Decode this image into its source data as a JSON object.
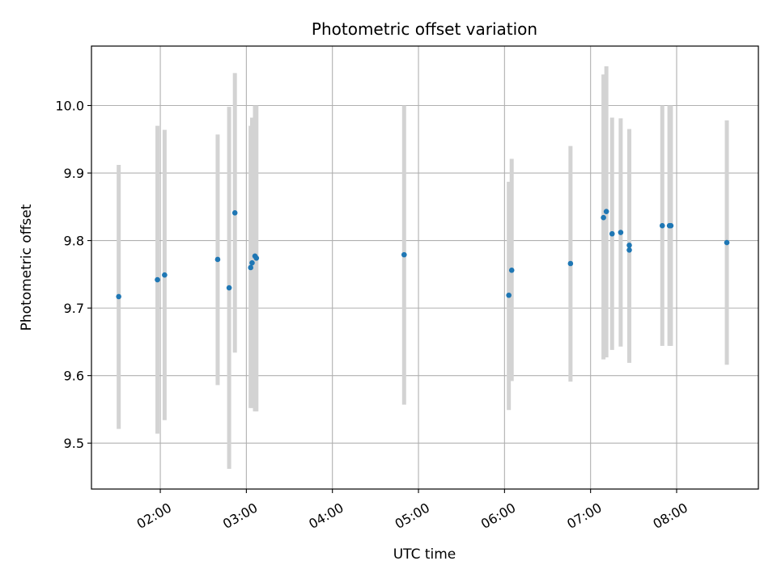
{
  "chart_data": {
    "type": "scatter",
    "title": "Photometric offset variation",
    "xlabel": "UTC time",
    "ylabel": "Photometric offset",
    "x_ticks": [
      "02:00",
      "03:00",
      "04:00",
      "05:00",
      "06:00",
      "07:00",
      "08:00"
    ],
    "y_ticks": [
      "9.5",
      "9.6",
      "9.7",
      "9.8",
      "9.9",
      "10.0"
    ],
    "xlim": [
      "01:12",
      "08:57"
    ],
    "ylim": [
      9.432,
      10.088
    ],
    "grid": true,
    "point_color": "#1f77b4",
    "errorbar_color": "#d3d3d3",
    "points": [
      {
        "x": "01:31",
        "y": 9.717,
        "ylow": 9.521,
        "yhigh": 9.912
      },
      {
        "x": "01:58",
        "y": 9.742,
        "ylow": 9.514,
        "yhigh": 9.97
      },
      {
        "x": "02:03",
        "y": 9.749,
        "ylow": 9.534,
        "yhigh": 9.964
      },
      {
        "x": "02:40",
        "y": 9.772,
        "ylow": 9.586,
        "yhigh": 9.957
      },
      {
        "x": "02:48",
        "y": 9.73,
        "ylow": 9.462,
        "yhigh": 9.998
      },
      {
        "x": "02:52",
        "y": 9.841,
        "ylow": 9.634,
        "yhigh": 10.048
      },
      {
        "x": "03:03",
        "y": 9.76,
        "ylow": 9.552,
        "yhigh": 9.97
      },
      {
        "x": "03:04",
        "y": 9.767,
        "ylow": 9.552,
        "yhigh": 9.982
      },
      {
        "x": "03:06",
        "y": 9.777,
        "ylow": 9.547,
        "yhigh": 10.0
      },
      {
        "x": "03:07",
        "y": 9.774,
        "ylow": 9.547,
        "yhigh": 10.0
      },
      {
        "x": "04:50",
        "y": 9.779,
        "ylow": 9.557,
        "yhigh": 10.0
      },
      {
        "x": "06:03",
        "y": 9.719,
        "ylow": 9.549,
        "yhigh": 9.887
      },
      {
        "x": "06:05",
        "y": 9.756,
        "ylow": 9.592,
        "yhigh": 9.921
      },
      {
        "x": "06:46",
        "y": 9.766,
        "ylow": 9.591,
        "yhigh": 9.94
      },
      {
        "x": "07:09",
        "y": 9.834,
        "ylow": 9.624,
        "yhigh": 10.046
      },
      {
        "x": "07:11",
        "y": 9.843,
        "ylow": 9.627,
        "yhigh": 10.058
      },
      {
        "x": "07:15",
        "y": 9.81,
        "ylow": 9.638,
        "yhigh": 9.982
      },
      {
        "x": "07:21",
        "y": 9.812,
        "ylow": 9.643,
        "yhigh": 9.981
      },
      {
        "x": "07:27",
        "y": 9.793,
        "ylow": 9.619,
        "yhigh": 9.965
      },
      {
        "x": "07:27",
        "y": 9.786,
        "ylow": 9.619,
        "yhigh": 9.965
      },
      {
        "x": "07:50",
        "y": 9.822,
        "ylow": 9.644,
        "yhigh": 10.0
      },
      {
        "x": "07:55",
        "y": 9.822,
        "ylow": 9.644,
        "yhigh": 10.0
      },
      {
        "x": "07:56",
        "y": 9.822,
        "ylow": 9.644,
        "yhigh": 10.0
      },
      {
        "x": "08:35",
        "y": 9.797,
        "ylow": 9.616,
        "yhigh": 9.978
      }
    ]
  }
}
